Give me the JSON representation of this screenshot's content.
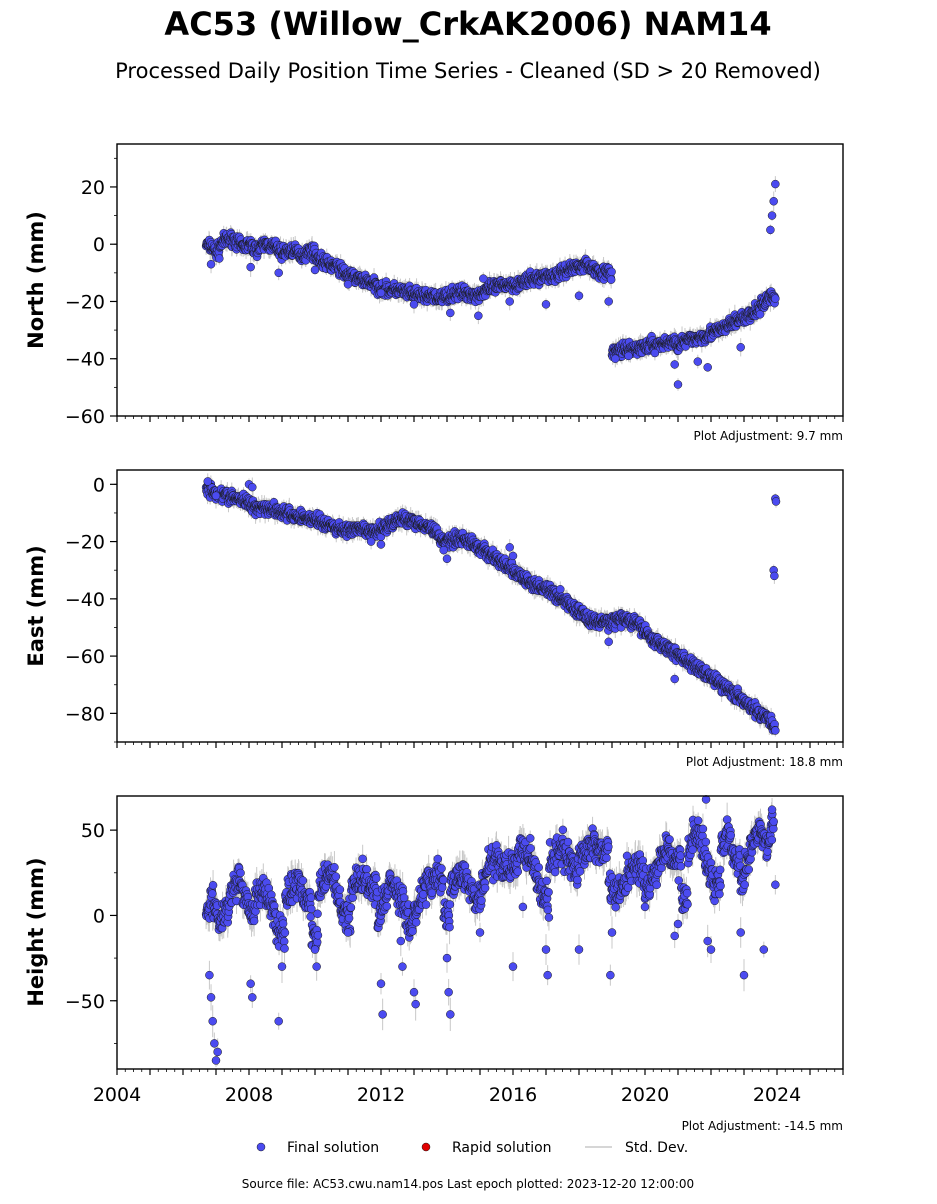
{
  "title": "AC53 (Willow_CrkAK2006) NAM14",
  "subtitle": "Processed Daily Position Time Series - Cleaned (SD > 20 Removed)",
  "legend": {
    "final": "Final solution",
    "rapid": "Rapid solution",
    "std": "Std. Dev."
  },
  "source": "Source file: AC53.cwu.nam14.pos  Last epoch plotted: 2023-12-20 12:00:00",
  "colors": {
    "final": "#4b4bf0",
    "rapid": "#e00000",
    "std": "#c8c8c8",
    "edge": "#1a1a1a"
  },
  "chart_data": [
    {
      "type": "scatter",
      "component": "north",
      "ylabel": "North (mm)",
      "ylim": [
        -60,
        35
      ],
      "xlim": [
        2004,
        2026
      ],
      "yticks": [
        20,
        0,
        -20,
        -40,
        -60
      ],
      "yticklabels": [
        "20",
        "0",
        "−20",
        "−40",
        "−60"
      ],
      "adjustment": "Plot Adjustment: 9.7 mm",
      "series": [
        {
          "x": [
            2006.7,
            2006.9,
            2007.0,
            2007.2,
            2007.5,
            2007.8,
            2008.0,
            2008.2,
            2008.5,
            2008.8,
            2009.0,
            2009.3,
            2009.6,
            2009.9,
            2010.1,
            2010.4,
            2010.7,
            2011.0,
            2011.3,
            2011.6,
            2011.9,
            2012.2,
            2012.5,
            2012.8,
            2013.1,
            2013.4,
            2013.7,
            2014.0,
            2014.3,
            2014.6,
            2014.9,
            2015.2,
            2015.5,
            2015.8,
            2016.1,
            2016.4,
            2016.7,
            2017.0,
            2017.3,
            2017.6,
            2017.9,
            2018.2,
            2018.5,
            2018.8,
            2018.95,
            2019.0,
            2019.3,
            2019.6,
            2019.9,
            2020.2,
            2020.5,
            2020.8,
            2021.0,
            2021.2,
            2021.5,
            2021.8,
            2022.0,
            2022.3,
            2022.6,
            2022.9,
            2023.2,
            2023.5,
            2023.8,
            2023.95
          ],
          "y": [
            0,
            -1,
            -3,
            1,
            2,
            -1,
            0,
            -2,
            0,
            -1,
            -3,
            -2,
            -4,
            -2,
            -5,
            -7,
            -8,
            -11,
            -12,
            -13,
            -15,
            -16,
            -16,
            -17,
            -18,
            -18,
            -19,
            -18,
            -17,
            -17,
            -18,
            -16,
            -15,
            -14,
            -14,
            -13,
            -12,
            -11,
            -11,
            -9,
            -8,
            -7,
            -9,
            -10,
            -10,
            -38,
            -37,
            -37,
            -36,
            -35,
            -35,
            -34,
            -35,
            -34,
            -33,
            -32,
            -31,
            -30,
            -28,
            -26,
            -25,
            -22,
            -18,
            -19
          ]
        },
        {
          "x": [
            2006.85,
            2007.1,
            2008.05,
            2008.9,
            2010.0,
            2011.0,
            2012.0,
            2013.0,
            2014.1,
            2014.95,
            2015.1,
            2015.9,
            2017.0,
            2018.0,
            2018.9,
            2019.1,
            2019.5,
            2020.3,
            2020.9,
            2021.0,
            2021.6,
            2021.9,
            2022.9,
            2023.8,
            2023.85,
            2023.9,
            2023.95
          ],
          "y": [
            -7,
            -5,
            -8,
            -10,
            -9,
            -14,
            -17,
            -21,
            -24,
            -25,
            -12,
            -20,
            -21,
            -18,
            -20,
            -40,
            -39,
            -38,
            -42,
            -49,
            -41,
            -43,
            -36,
            5,
            10,
            15,
            21
          ]
        }
      ]
    },
    {
      "type": "scatter",
      "component": "east",
      "ylabel": "East (mm)",
      "ylim": [
        -90,
        5
      ],
      "xlim": [
        2004,
        2026
      ],
      "yticks": [
        0,
        -20,
        -40,
        -60,
        -80
      ],
      "yticklabels": [
        "0",
        "−20",
        "−40",
        "−60",
        "−80"
      ],
      "adjustment": "Plot Adjustment: 18.8 mm",
      "series": [
        {
          "x": [
            2006.7,
            2007.0,
            2007.3,
            2007.6,
            2007.9,
            2008.2,
            2008.5,
            2008.8,
            2009.1,
            2009.4,
            2009.7,
            2010.0,
            2010.3,
            2010.6,
            2010.9,
            2011.2,
            2011.5,
            2011.8,
            2012.1,
            2012.4,
            2012.7,
            2013.0,
            2013.3,
            2013.6,
            2013.9,
            2014.2,
            2014.5,
            2014.8,
            2015.1,
            2015.4,
            2015.7,
            2016.0,
            2016.3,
            2016.6,
            2016.9,
            2017.2,
            2017.5,
            2017.8,
            2018.1,
            2018.4,
            2018.7,
            2019.0,
            2019.3,
            2019.6,
            2019.9,
            2020.2,
            2020.5,
            2020.8,
            2021.1,
            2021.4,
            2021.7,
            2022.0,
            2022.3,
            2022.6,
            2022.9,
            2023.2,
            2023.5,
            2023.8,
            2023.95
          ],
          "y": [
            -1,
            -3,
            -4,
            -5,
            -6,
            -8,
            -8,
            -9,
            -10,
            -11,
            -12,
            -12,
            -14,
            -15,
            -16,
            -16,
            -16,
            -17,
            -15,
            -13,
            -12,
            -13,
            -14,
            -16,
            -20,
            -19,
            -19,
            -21,
            -23,
            -25,
            -28,
            -30,
            -33,
            -35,
            -36,
            -38,
            -40,
            -43,
            -45,
            -48,
            -48,
            -48,
            -47,
            -48,
            -50,
            -54,
            -56,
            -58,
            -60,
            -63,
            -65,
            -67,
            -70,
            -72,
            -75,
            -78,
            -80,
            -82,
            -86
          ]
        },
        {
          "x": [
            2006.75,
            2007.0,
            2008.0,
            2008.1,
            2011.7,
            2012.0,
            2013.9,
            2014.0,
            2015.9,
            2016.0,
            2018.9,
            2020.9,
            2023.9,
            2023.92,
            2023.95,
            2023.97
          ],
          "y": [
            1,
            -4,
            0,
            -1,
            -20,
            -21,
            -23,
            -26,
            -22,
            -25,
            -55,
            -68,
            -30,
            -32,
            -5,
            -6
          ]
        }
      ]
    },
    {
      "type": "scatter",
      "component": "height",
      "ylabel": "Height (mm)",
      "ylim": [
        -90,
        70
      ],
      "xlim": [
        2004,
        2026
      ],
      "yticks": [
        50,
        0,
        -50
      ],
      "yticklabels": [
        "50",
        "0",
        "−50"
      ],
      "xticks": [
        2004,
        2008,
        2012,
        2016,
        2020,
        2024
      ],
      "xticklabels": [
        "2004",
        "2008",
        "2012",
        "2016",
        "2020",
        "2024"
      ],
      "adjustment": "Plot Adjustment: -14.5 mm",
      "series": [
        {
          "x": [
            2006.7,
            2006.9,
            2007.1,
            2007.3,
            2007.5,
            2007.7,
            2007.9,
            2008.1,
            2008.3,
            2008.5,
            2008.7,
            2008.9,
            2009.1,
            2009.3,
            2009.5,
            2009.7,
            2009.9,
            2010.1,
            2010.3,
            2010.5,
            2010.7,
            2010.9,
            2011.1,
            2011.3,
            2011.5,
            2011.7,
            2011.9,
            2012.1,
            2012.3,
            2012.5,
            2012.7,
            2012.9,
            2013.1,
            2013.3,
            2013.5,
            2013.7,
            2013.9,
            2014.1,
            2014.3,
            2014.5,
            2014.7,
            2014.9,
            2015.1,
            2015.3,
            2015.5,
            2015.7,
            2015.9,
            2016.1,
            2016.3,
            2016.5,
            2016.7,
            2016.9,
            2017.1,
            2017.3,
            2017.5,
            2017.7,
            2017.9,
            2018.1,
            2018.3,
            2018.5,
            2018.7,
            2018.9,
            2019.1,
            2019.3,
            2019.5,
            2019.7,
            2019.9,
            2020.1,
            2020.3,
            2020.5,
            2020.7,
            2020.9,
            2021.1,
            2021.3,
            2021.5,
            2021.7,
            2021.9,
            2022.1,
            2022.3,
            2022.5,
            2022.7,
            2022.9,
            2023.1,
            2023.3,
            2023.5,
            2023.7,
            2023.9
          ],
          "y": [
            5,
            10,
            -5,
            2,
            15,
            20,
            10,
            0,
            15,
            12,
            5,
            -10,
            10,
            15,
            20,
            8,
            -10,
            15,
            20,
            25,
            10,
            0,
            18,
            20,
            25,
            15,
            -5,
            10,
            20,
            12,
            5,
            -8,
            5,
            15,
            20,
            22,
            0,
            18,
            20,
            25,
            15,
            5,
            20,
            30,
            35,
            30,
            25,
            30,
            40,
            35,
            25,
            10,
            30,
            35,
            40,
            32,
            25,
            35,
            40,
            42,
            38,
            20,
            10,
            15,
            25,
            30,
            25,
            15,
            25,
            35,
            40,
            30,
            10,
            35,
            50,
            45,
            30,
            20,
            40,
            50,
            35,
            15,
            30,
            45,
            50,
            40,
            55
          ]
        },
        {
          "x": [
            2006.8,
            2006.85,
            2006.9,
            2006.95,
            2007.0,
            2007.05,
            2008.05,
            2008.1,
            2008.9,
            2009.0,
            2010.0,
            2010.05,
            2011.0,
            2012.0,
            2012.05,
            2012.6,
            2012.65,
            2013.0,
            2013.05,
            2014.0,
            2014.05,
            2014.1,
            2015.0,
            2016.0,
            2016.3,
            2017.0,
            2017.05,
            2018.0,
            2018.95,
            2019.0,
            2020.0,
            2020.9,
            2021.0,
            2021.9,
            2022.0,
            2022.9,
            2023.0,
            2023.95,
            2021.85,
            2023.6,
            2023.85
          ],
          "y": [
            -35,
            -48,
            -62,
            -75,
            -85,
            -80,
            -40,
            -48,
            -62,
            -30,
            -20,
            -30,
            -10,
            -40,
            -58,
            -15,
            -30,
            -45,
            -52,
            -25,
            -45,
            -58,
            -10,
            -30,
            5,
            -20,
            -35,
            -20,
            -35,
            -10,
            5,
            -12,
            -5,
            -15,
            -20,
            -10,
            -35,
            18,
            68,
            -20,
            62
          ]
        }
      ]
    }
  ]
}
